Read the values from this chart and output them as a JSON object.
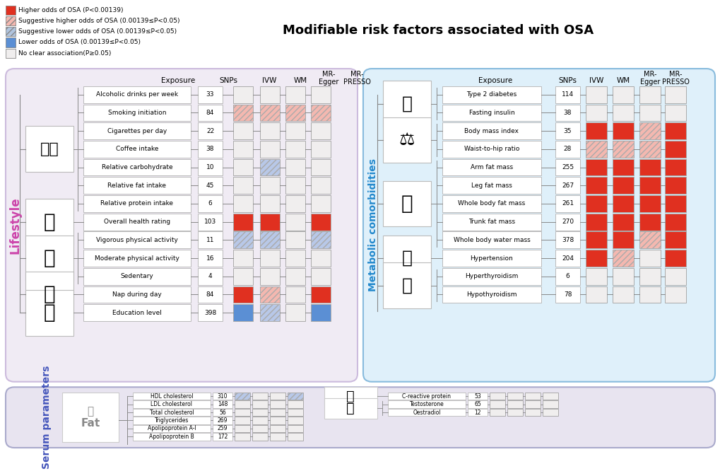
{
  "title": "Modifiable risk factors associated with OSA",
  "legend_items": [
    {
      "label": "Higher odds of OSA (P<0.00139)",
      "color": "#E03020",
      "pattern": null
    },
    {
      "label": "Suggestive higher odds of OSA (0.00139≤P<0.05)",
      "color": "#F4B8B0",
      "pattern": "///"
    },
    {
      "label": "Suggestive lower odds of OSA (0.00139≤P<0.05)",
      "color": "#B0C4DE",
      "pattern": "///"
    },
    {
      "label": "Lower odds of OSA (0.00139≤P<0.05)",
      "color": "#5B8FD4",
      "pattern": null
    },
    {
      "label": "No clear association(P≥0.05)",
      "color": "#F0EEEE",
      "pattern": null
    }
  ],
  "lifestyle_bg": "#F0EBF4",
  "metabolic_bg": "#DFF0FA",
  "serum_bg": "#E8E4F0",
  "lifestyle_label": "Lifestyle",
  "metabolic_label": "Metabolic comorbidities",
  "serum_label": "Serum parameters",
  "col_headers": [
    "Exposure",
    "SNPs",
    "IVW",
    "WM",
    "MR-\nEgger",
    "MR-\nPRESSO"
  ],
  "lifestyle_rows": [
    {
      "name": "Alcoholic drinks per week",
      "snp": "33",
      "ivw": "none",
      "wm": "none",
      "egger": "none",
      "presso": "none",
      "group": "food"
    },
    {
      "name": "Smoking initiation",
      "snp": "84",
      "ivw": "sugg_high",
      "wm": "sugg_high",
      "egger": "sugg_high",
      "presso": "sugg_high",
      "group": "food"
    },
    {
      "name": "Cigarettes per day",
      "snp": "22",
      "ivw": "none",
      "wm": "none",
      "egger": "none",
      "presso": "none",
      "group": "food"
    },
    {
      "name": "Coffee intake",
      "snp": "38",
      "ivw": "none",
      "wm": "none",
      "egger": "none",
      "presso": "none",
      "group": "food"
    },
    {
      "name": "Relative carbohydrate",
      "snp": "10",
      "ivw": "none",
      "wm": "sugg_low",
      "egger": "none",
      "presso": "none",
      "group": "food"
    },
    {
      "name": "Relative fat intake",
      "snp": "45",
      "ivw": "none",
      "wm": "none",
      "egger": "none",
      "presso": "none",
      "group": "food"
    },
    {
      "name": "Relative protein intake",
      "snp": "6",
      "ivw": "none",
      "wm": "none",
      "egger": "none",
      "presso": "none",
      "group": "food"
    },
    {
      "name": "Overall health rating",
      "snp": "103",
      "ivw": "high",
      "wm": "high",
      "egger": "none",
      "presso": "high",
      "group": "health"
    },
    {
      "name": "Vigorous physical activity",
      "snp": "11",
      "ivw": "sugg_low",
      "wm": "sugg_low",
      "egger": "none",
      "presso": "sugg_low",
      "group": "sport"
    },
    {
      "name": "Moderate physical activity",
      "snp": "16",
      "ivw": "none",
      "wm": "none",
      "egger": "none",
      "presso": "none",
      "group": "sport"
    },
    {
      "name": "Sedentary",
      "snp": "4",
      "ivw": "none",
      "wm": "none",
      "egger": "none",
      "presso": "none",
      "group": "sport"
    },
    {
      "name": "Nap during day",
      "snp": "84",
      "ivw": "high",
      "wm": "sugg_high",
      "egger": "none",
      "presso": "high",
      "group": "sleep"
    },
    {
      "name": "Education level",
      "snp": "398",
      "ivw": "low",
      "wm": "sugg_low",
      "egger": "none",
      "presso": "low",
      "group": "education"
    }
  ],
  "metabolic_rows": [
    {
      "name": "Type 2 diabetes",
      "snp": "114",
      "ivw": "none",
      "wm": "none",
      "egger": "none",
      "presso": "none",
      "group": "diabetes"
    },
    {
      "name": "Fasting insulin",
      "snp": "38",
      "ivw": "none",
      "wm": "none",
      "egger": "none",
      "presso": "none",
      "group": "diabetes"
    },
    {
      "name": "Body mass index",
      "snp": "35",
      "ivw": "high",
      "wm": "high",
      "egger": "sugg_high",
      "presso": "high",
      "group": "bmi"
    },
    {
      "name": "Waist-to-hip ratio",
      "snp": "28",
      "ivw": "sugg_high",
      "wm": "sugg_high",
      "egger": "sugg_high",
      "presso": "high",
      "group": "bmi"
    },
    {
      "name": "Arm fat mass",
      "snp": "255",
      "ivw": "high",
      "wm": "high",
      "egger": "high",
      "presso": "high",
      "group": "fat"
    },
    {
      "name": "Leg fat mass",
      "snp": "267",
      "ivw": "high",
      "wm": "high",
      "egger": "high",
      "presso": "high",
      "group": "fat"
    },
    {
      "name": "Whole body fat mass",
      "snp": "261",
      "ivw": "high",
      "wm": "high",
      "egger": "high",
      "presso": "high",
      "group": "fat"
    },
    {
      "name": "Trunk fat mass",
      "snp": "270",
      "ivw": "high",
      "wm": "high",
      "egger": "high",
      "presso": "high",
      "group": "fat"
    },
    {
      "name": "Whole body water mass",
      "snp": "378",
      "ivw": "high",
      "wm": "high",
      "egger": "sugg_high",
      "presso": "high",
      "group": "fat"
    },
    {
      "name": "Hypertension",
      "snp": "204",
      "ivw": "high",
      "wm": "sugg_high",
      "egger": "none",
      "presso": "high",
      "group": "hypertension"
    },
    {
      "name": "Hyperthyroidism",
      "snp": "6",
      "ivw": "none",
      "wm": "none",
      "egger": "none",
      "presso": "none",
      "group": "thyroid"
    },
    {
      "name": "Hypothyroidism",
      "snp": "78",
      "ivw": "none",
      "wm": "none",
      "egger": "none",
      "presso": "none",
      "group": "thyroid"
    }
  ],
  "serum_left_rows": [
    {
      "name": "HDL cholesterol",
      "snp": "310",
      "ivw": "sugg_low",
      "wm": "none",
      "egger": "none",
      "presso": "sugg_low",
      "group": "fat_serum"
    },
    {
      "name": "LDL cholesterol",
      "snp": "148",
      "ivw": "none",
      "wm": "none",
      "egger": "none",
      "presso": "none",
      "group": "fat_serum"
    },
    {
      "name": "Total cholesterol",
      "snp": "56",
      "ivw": "none",
      "wm": "none",
      "egger": "none",
      "presso": "none",
      "group": "fat_serum"
    },
    {
      "name": "Triglycerides",
      "snp": "269",
      "ivw": "none",
      "wm": "none",
      "egger": "none",
      "presso": "none",
      "group": "fat_serum"
    },
    {
      "name": "Apolipoprotein A-I",
      "snp": "259",
      "ivw": "none",
      "wm": "none",
      "egger": "none",
      "presso": "none",
      "group": "fat_serum"
    },
    {
      "name": "Apolipoprotein B",
      "snp": "172",
      "ivw": "none",
      "wm": "none",
      "egger": "none",
      "presso": "none",
      "group": "fat_serum"
    }
  ],
  "serum_right_rows": [
    {
      "name": "C-reactive protein",
      "snp": "53",
      "ivw": "none",
      "wm": "none",
      "egger": "none",
      "presso": "none",
      "group": "crp"
    },
    {
      "name": "Testosterone",
      "snp": "65",
      "ivw": "none",
      "wm": "none",
      "egger": "none",
      "presso": "none",
      "group": "hormone"
    },
    {
      "name": "Oestradiol",
      "snp": "12",
      "ivw": "none",
      "wm": "none",
      "egger": "none",
      "presso": "none",
      "group": "hormone"
    }
  ],
  "colors": {
    "high": "#E03020",
    "sugg_high": "#F4B8B0",
    "sugg_low": "#B8C8E8",
    "low": "#5B8FD4",
    "none": "#F0EEEE",
    "border": "#AAAAAA",
    "dark_border": "#888888"
  }
}
